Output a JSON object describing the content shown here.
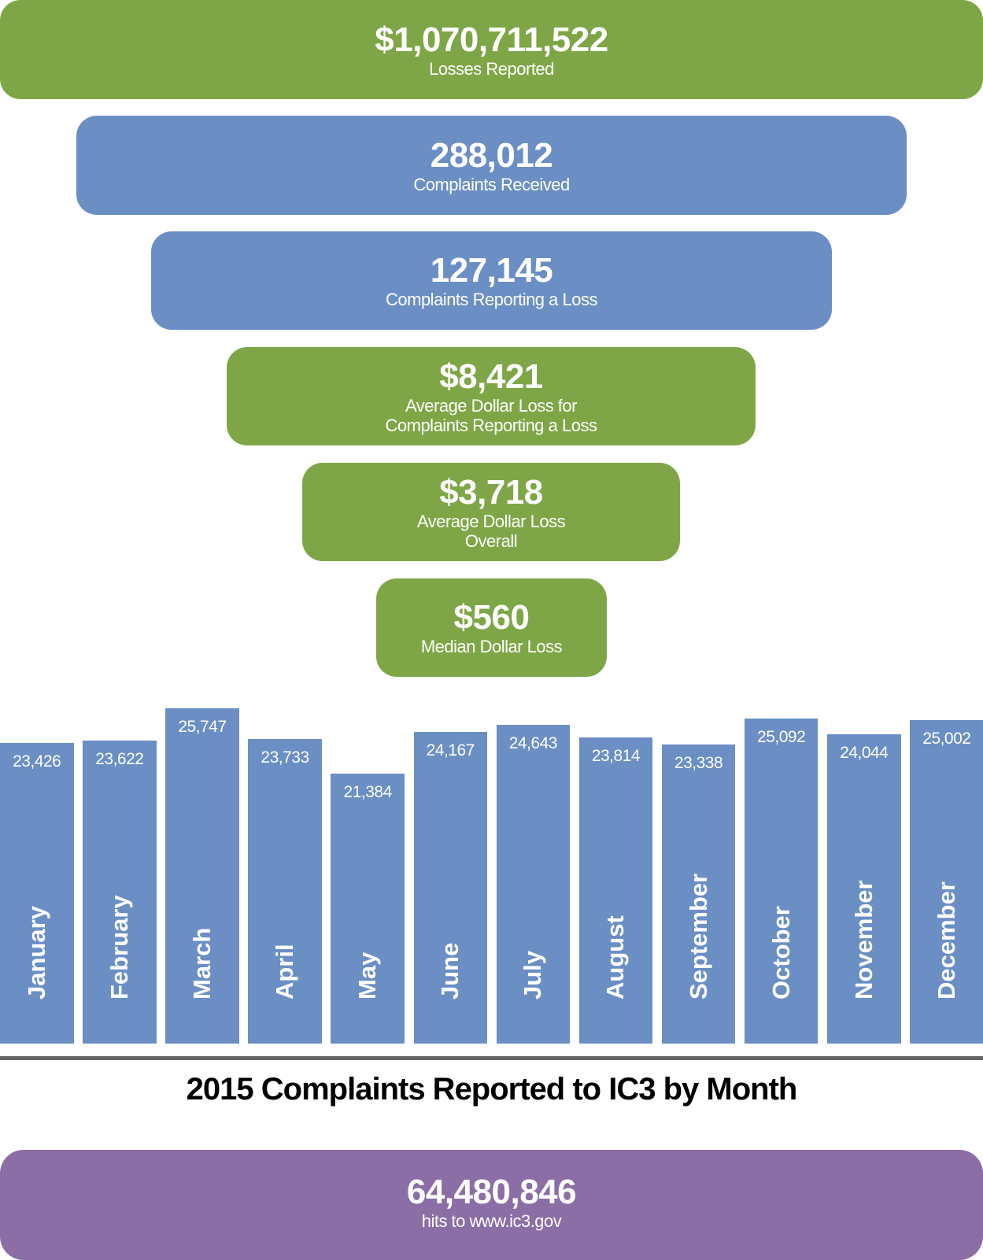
{
  "colors": {
    "green": "#7fa646",
    "blue": "#6b8fc4",
    "purple": "#8c6ea6"
  },
  "stats": [
    {
      "value": "$1,070,711,522",
      "label": "Losses Reported"
    },
    {
      "value": "288,012",
      "label": "Complaints Received"
    },
    {
      "value": "127,145",
      "label": "Complaints Reporting a Loss"
    },
    {
      "value": "$8,421",
      "label": "Average Dollar Loss for",
      "label2": "Complaints Reporting a Loss"
    },
    {
      "value": "$3,718",
      "label": "Average Dollar Loss",
      "label2": "Overall"
    },
    {
      "value": "$560",
      "label": "Median Dollar Loss"
    }
  ],
  "hits": {
    "value": "64,480,846",
    "label": "hits to www.ic3.gov"
  },
  "chart_data": {
    "type": "bar",
    "title": "2015 Complaints Reported to IC3 by Month",
    "categories": [
      "January",
      "February",
      "March",
      "April",
      "May",
      "June",
      "July",
      "August",
      "September",
      "October",
      "November",
      "December"
    ],
    "values": [
      23426,
      23622,
      25747,
      23733,
      21384,
      24167,
      24643,
      23814,
      23338,
      25092,
      24044,
      25002
    ],
    "value_labels": [
      "23,426",
      "23,622",
      "25,747",
      "23,733",
      "21,384",
      "24,167",
      "24,643",
      "23,814",
      "23,338",
      "25,092",
      "24,044",
      "25,002"
    ],
    "xlabel": "",
    "ylabel": "",
    "grid": false
  }
}
